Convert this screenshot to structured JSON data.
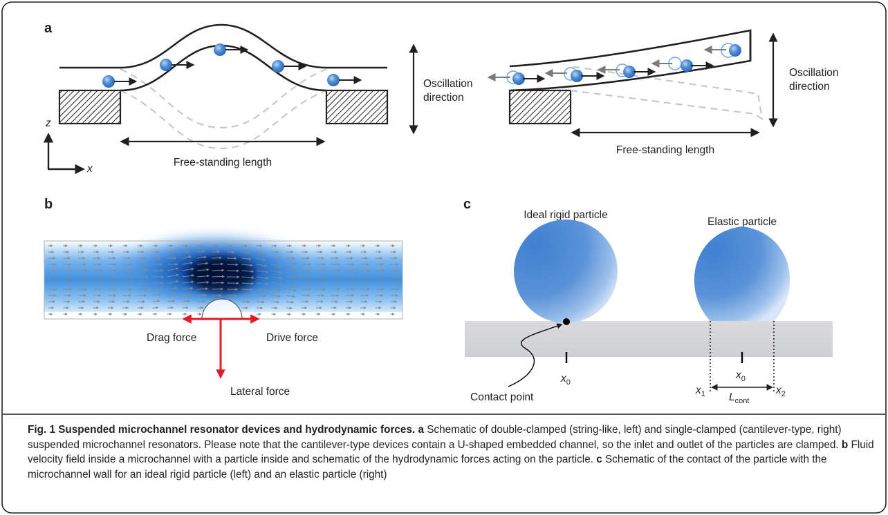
{
  "figure": {
    "panels": {
      "a": {
        "label": "a",
        "axis_z": "z",
        "axis_x": "x",
        "left_oscillation": [
          "Oscillation",
          "direction"
        ],
        "left_length": "Free-standing length",
        "right_oscillation": [
          "Oscillation",
          "direction"
        ],
        "right_length": "Free-standing length"
      },
      "b": {
        "label": "b",
        "drag_force": "Drag force",
        "drive_force": "Drive force",
        "lateral_force": "Lateral force"
      },
      "c": {
        "label": "c",
        "rigid_title": "Ideal rigid particle",
        "elastic_title": "Elastic particle",
        "contact_point": "Contact point",
        "x0_left": "x",
        "x0_left_sub": "0",
        "x0_right": "x",
        "x0_right_sub": "0",
        "x1": "x",
        "x1_sub": "1",
        "x2": "x",
        "x2_sub": "2",
        "lcont": "L",
        "lcont_sub": "cont"
      }
    },
    "caption": {
      "title": "Fig. 1 Suspended microchannel resonator devices and hydrodynamic forces.",
      "a_label": "a",
      "a_text": " Schematic of double-clamped (string-like, left) and single-clamped (cantilever-type, right) suspended microchannel resonators. Please note that the cantilever-type devices contain a U-shaped embedded channel, so the inlet and outlet of the particles are clamped. ",
      "b_label": "b",
      "b_text": " Fluid velocity field inside a microchannel with a particle inside and schematic of the hydrodynamic forces acting on the particle. ",
      "c_label": "c",
      "c_text": " Schematic of the contact of the particle with the microchannel wall for an ideal rigid particle (left) and an elastic particle (right)"
    }
  }
}
